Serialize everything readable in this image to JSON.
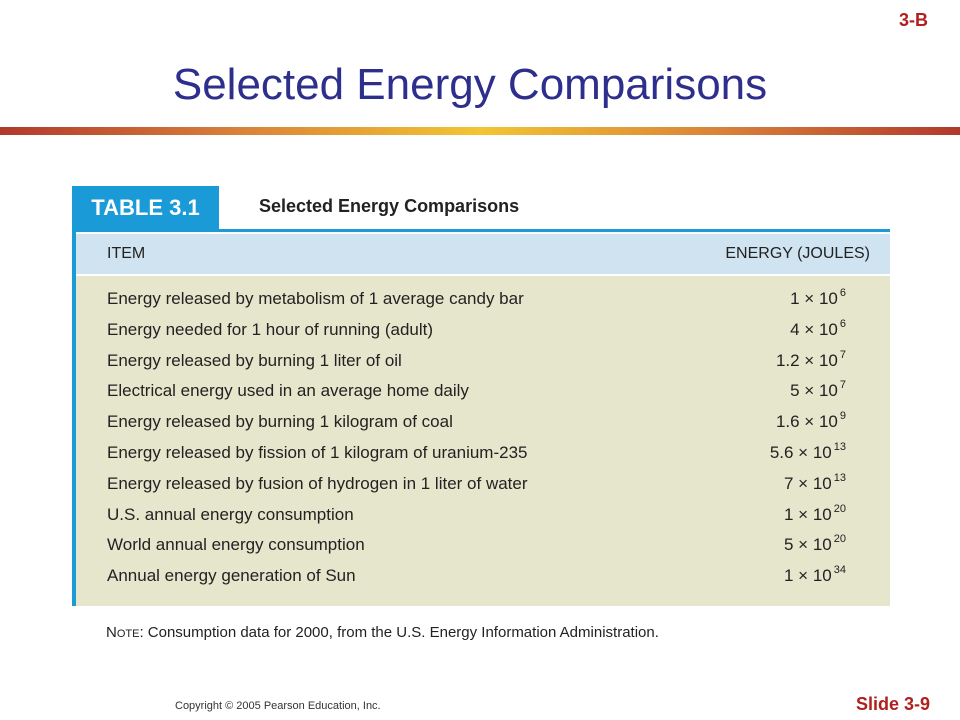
{
  "header": {
    "corner_tag": "3-B",
    "title": "Selected Energy Comparisons"
  },
  "table": {
    "label": "TABLE 3.1",
    "caption": "Selected Energy Comparisons",
    "columns": {
      "item": "ITEM",
      "energy": "ENERGY (JOULES)"
    },
    "rows": [
      {
        "item": "Energy released by metabolism of 1 average candy bar",
        "mantissa": "1 × 10",
        "exp": "6"
      },
      {
        "item": "Energy needed for 1 hour of running (adult)",
        "mantissa": "4 × 10",
        "exp": "6"
      },
      {
        "item": "Energy released by burning 1 liter of oil",
        "mantissa": "1.2 × 10",
        "exp": "7"
      },
      {
        "item": "Electrical energy used in an average home daily",
        "mantissa": "5 × 10",
        "exp": "7"
      },
      {
        "item": "Energy released by burning 1 kilogram of coal",
        "mantissa": "1.6 × 10",
        "exp": "9"
      },
      {
        "item": "Energy released by fission of 1 kilogram of uranium-235",
        "mantissa": "5.6 × 10",
        "exp": "13"
      },
      {
        "item": "Energy released by fusion of hydrogen in 1 liter of water",
        "mantissa": "7 × 10",
        "exp": "13"
      },
      {
        "item": "U.S. annual energy consumption",
        "mantissa": "1 × 10",
        "exp": "20"
      },
      {
        "item": "World annual energy consumption",
        "mantissa": "5 × 10",
        "exp": "20"
      },
      {
        "item": "Annual energy generation of Sun",
        "mantissa": "1 × 10",
        "exp": "34"
      }
    ],
    "note_label": "Note:",
    "note_text": " Consumption data for 2000, from the U.S. Energy Information Administration."
  },
  "footer": {
    "copyright": "Copyright © 2005 Pearson Education, Inc.",
    "slide_number": "Slide 3-9"
  },
  "colors": {
    "title": "#2e2e8c",
    "accent_red": "#b0201e",
    "table_blue": "#1a9ad6",
    "header_row": "#cfe3f1",
    "body_row": "#e6e6cd"
  }
}
